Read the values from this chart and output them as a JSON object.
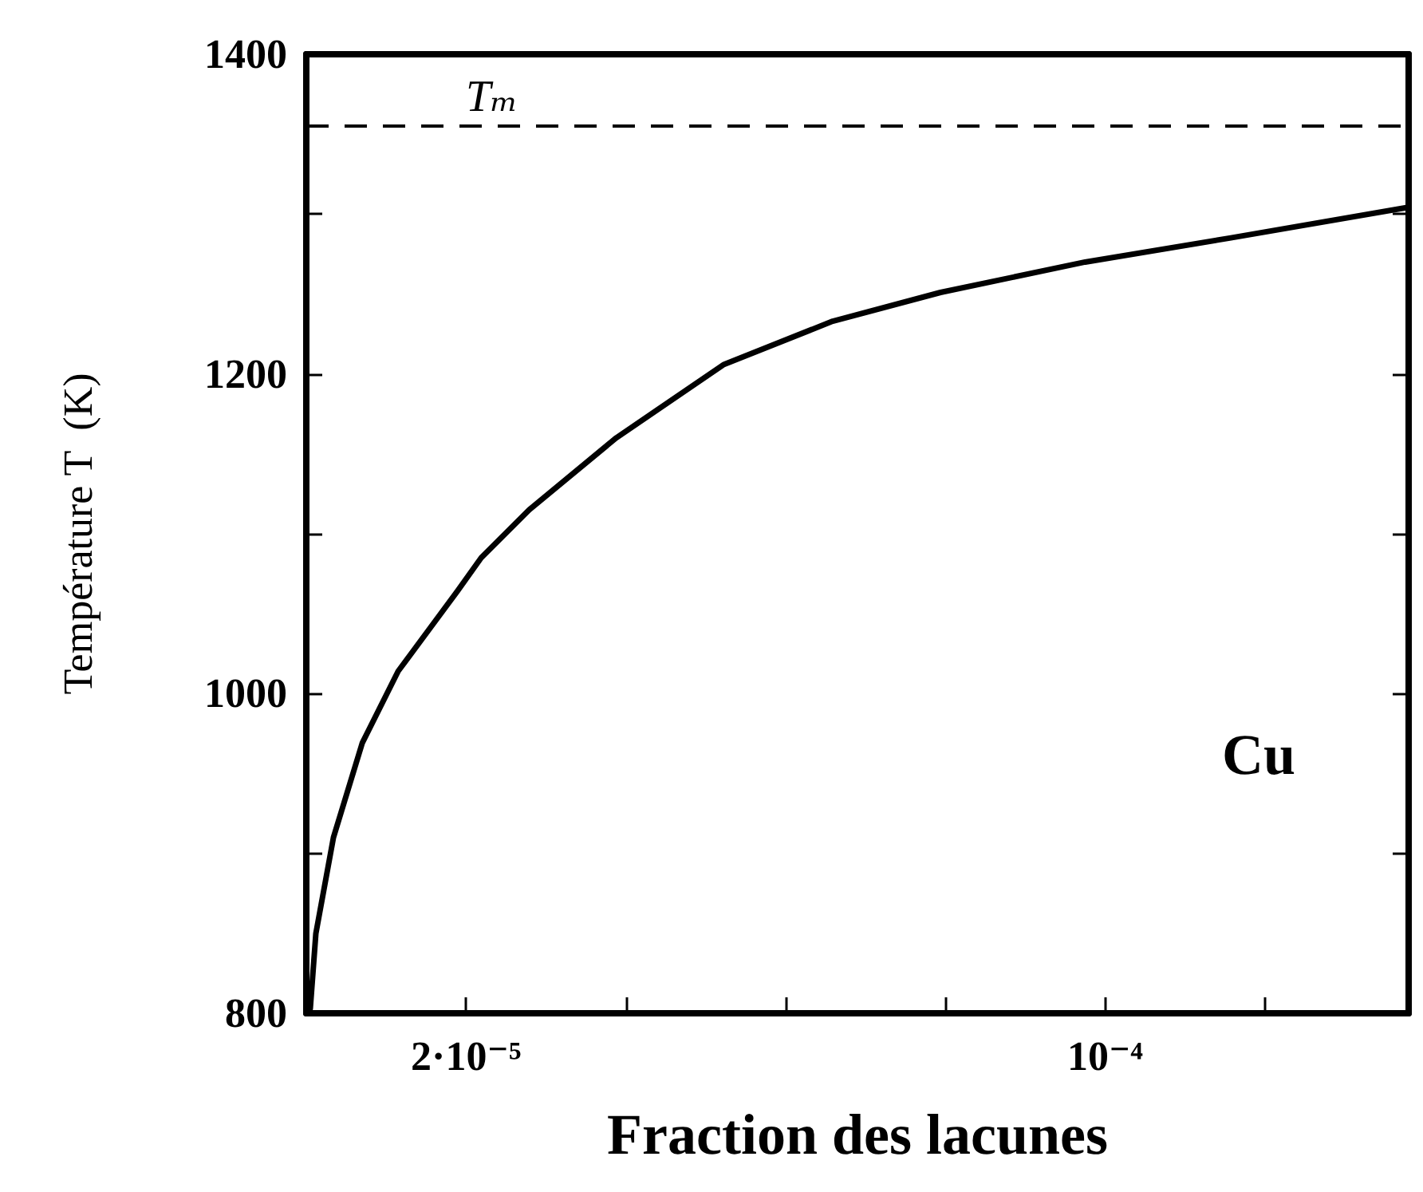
{
  "chart_data": {
    "type": "line",
    "xlabel": "Fraction des lacunes",
    "ylabel": "Température T  (K)",
    "annotations": [
      "Cu"
    ],
    "x": [
      5e-07,
      1.2e-06,
      3.4e-06,
      7e-06,
      1.15e-05,
      1.89e-05,
      2.19e-05,
      2.79e-05,
      3.88e-05,
      5.23e-05,
      6.59e-05,
      7.94e-05,
      9.75e-05,
      0.0001156,
      0.0001377
    ],
    "series": [
      {
        "color": "#000000",
        "values": [
          803,
          850,
          910,
          969,
          1014,
          1064,
          1085,
          1115,
          1160,
          1206,
          1233,
          1251,
          1270,
          1285,
          1304
        ]
      }
    ],
    "xlim": [
      0,
      0.000138
    ],
    "xticks": [
      {
        "value": 2e-05,
        "label": "2·10⁻⁵"
      },
      {
        "value": 4e-05,
        "label": null
      },
      {
        "value": 6e-05,
        "label": null
      },
      {
        "value": 8e-05,
        "label": null
      },
      {
        "value": 0.0001,
        "label": "10⁻⁴"
      },
      {
        "value": 0.00012,
        "label": null
      }
    ],
    "ylim": [
      800,
      1400
    ],
    "yticks": [
      800,
      {
        "value": 900,
        "label": null
      },
      1000,
      {
        "value": 1100,
        "label": null
      },
      1200,
      {
        "value": 1300,
        "label": null
      },
      1400
    ],
    "ref_lines": [
      {
        "axis": "y",
        "value": 1355,
        "label": "Tₘ",
        "color": "#000000",
        "line_style": "dashed"
      }
    ],
    "grid": false,
    "marker": "none",
    "line_style": "solid"
  }
}
